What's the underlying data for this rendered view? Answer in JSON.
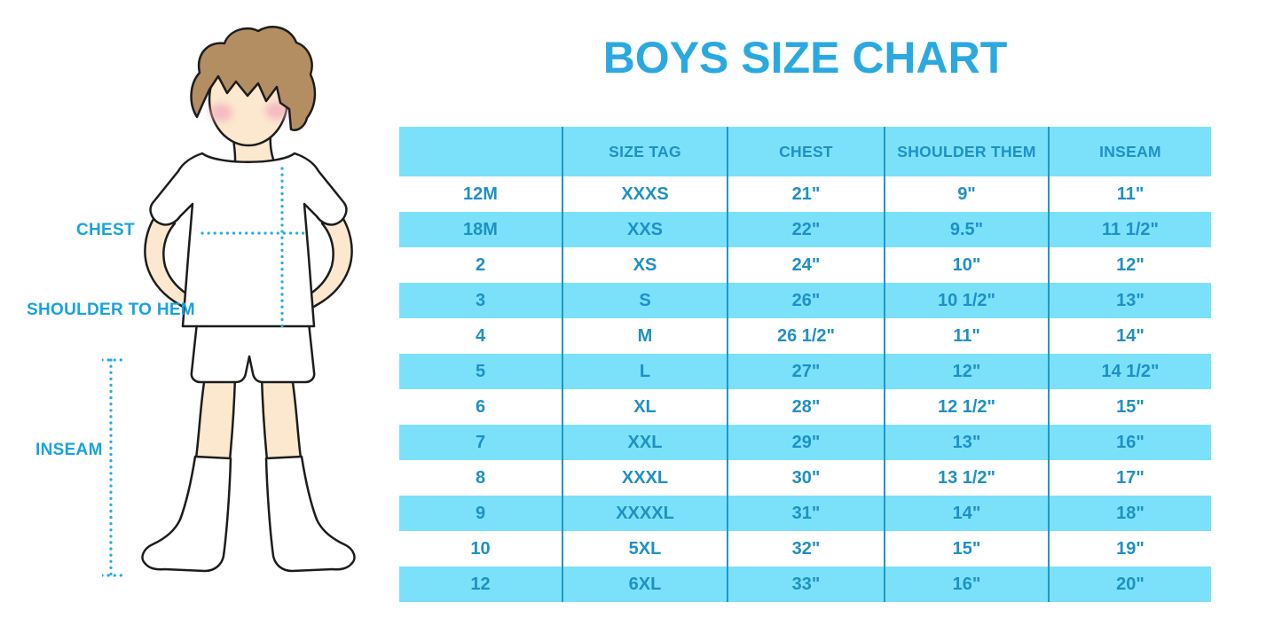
{
  "title": "BOYS SIZE CHART",
  "diagram": {
    "figure": "boy-in-tshirt-shorts-and-knee-socks",
    "labels": [
      {
        "id": "chest",
        "text": "CHEST"
      },
      {
        "id": "shoulder_to_hem",
        "text": "SHOULDER TO HEM"
      },
      {
        "id": "inseam",
        "text": "INSEAM"
      }
    ]
  },
  "chart_data": {
    "type": "table",
    "title": "BOYS SIZE CHART",
    "columns": [
      "",
      "SIZE TAG",
      "CHEST",
      "SHOULDER THEM",
      "INSEAM"
    ],
    "rows": [
      [
        "12M",
        "XXXS",
        "21\"",
        "9\"",
        "11\""
      ],
      [
        "18M",
        "XXS",
        "22\"",
        "9.5\"",
        "11 1/2\""
      ],
      [
        "2",
        "XS",
        "24\"",
        "10\"",
        "12\""
      ],
      [
        "3",
        "S",
        "26\"",
        "10 1/2\"",
        "13\""
      ],
      [
        "4",
        "M",
        "26 1/2\"",
        "11\"",
        "14\""
      ],
      [
        "5",
        "L",
        "27\"",
        "12\"",
        "14 1/2\""
      ],
      [
        "6",
        "XL",
        "28\"",
        "12 1/2\"",
        "15\""
      ],
      [
        "7",
        "XXL",
        "29\"",
        "13\"",
        "16\""
      ],
      [
        "8",
        "XXXL",
        "30\"",
        "13 1/2\"",
        "17\""
      ],
      [
        "9",
        "XXXXL",
        "31\"",
        "14\"",
        "18\""
      ],
      [
        "10",
        "5XL",
        "32\"",
        "15\"",
        "19\""
      ],
      [
        "12",
        "6XL",
        "33\"",
        "16\"",
        "20\""
      ]
    ],
    "row_striping": "white-and-light-blue-alternating",
    "legend_position": "none",
    "grid": "vertical-dividers-only"
  },
  "colors": {
    "title_blue": "#2AA9E0",
    "label_blue": "#18A3DE",
    "row_blue": "#7BE1FA",
    "table_text": "#1E90C4",
    "divider_blue": "#1F97C8",
    "dotted_line": "#29ABE2",
    "skin": "#FBE8CE",
    "hair": "#B38E63",
    "blush": "#F2A9BC",
    "outline": "#1C1C1C",
    "garment_white": "#FFFFFF"
  }
}
